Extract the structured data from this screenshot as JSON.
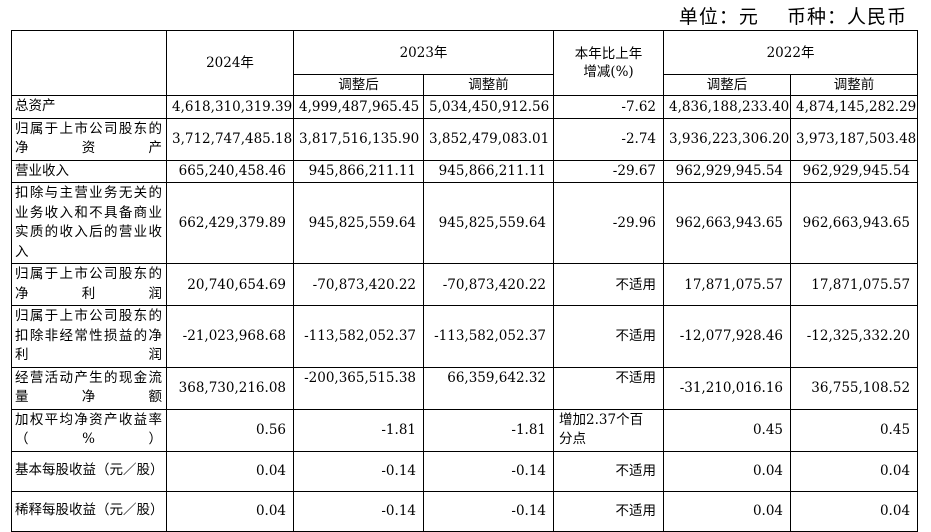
{
  "unit_line": "单位：元    币种：人民币",
  "header": {
    "y2024": "2024年",
    "y2023": "2023年",
    "change": "本年比上年\n增减(%)",
    "y2022": "2022年",
    "adjusted_after": "调整后",
    "adjusted_before": "调整前"
  },
  "rows": [
    {
      "label": "总资产",
      "v2024": "4,618,310,319.39",
      "v2023a": "4,999,487,965.45",
      "v2023b": "5,034,450,912.56",
      "chg": "-7.62",
      "v2022a": "4,836,188,233.40",
      "v2022b": "4,874,145,282.29"
    },
    {
      "label": "归属于上市公司股东的净资产",
      "v2024": "3,712,747,485.18",
      "v2023a": "3,817,516,135.90",
      "v2023b": "3,852,479,083.01",
      "chg": "-2.74",
      "v2022a": "3,936,223,306.20",
      "v2022b": "3,973,187,503.48"
    },
    {
      "label": "营业收入",
      "v2024": "665,240,458.46",
      "v2023a": "945,866,211.11",
      "v2023b": "945,866,211.11",
      "chg": "-29.67",
      "v2022a": "962,929,945.54",
      "v2022b": "962,929,945.54"
    },
    {
      "label": "扣除与主营业务无关的业务收入和不具备商业实质的收入后的营业收入",
      "v2024": "662,429,379.89",
      "v2023a": "945,825,559.64",
      "v2023b": "945,825,559.64",
      "chg": "-29.96",
      "v2022a": "962,663,943.65",
      "v2022b": "962,663,943.65"
    },
    {
      "label": "归属于上市公司股东的净利润",
      "v2024": "20,740,654.69",
      "v2023a": "-70,873,420.22",
      "v2023b": "-70,873,420.22",
      "chg": "不适用",
      "v2022a": "17,871,075.57",
      "v2022b": "17,871,075.57"
    },
    {
      "label": "归属于上市公司股东的扣除非经常性损益的净利润",
      "v2024": "-21,023,968.68",
      "v2023a": "-113,582,052.37",
      "v2023b": "-113,582,052.37",
      "chg": "不适用",
      "v2022a": "-12,077,928.46",
      "v2022b": "-12,325,332.20"
    },
    {
      "label": "经营活动产生的现金流量净额",
      "v2024": "368,730,216.08",
      "v2023a": "-200,365,515.38",
      "v2023b": "66,359,642.32",
      "chg": "不适用",
      "v2022a": "-31,210,016.16",
      "v2022b": "36,755,108.52"
    },
    {
      "label": "加权平均净资产收益率（%）",
      "v2024": "0.56",
      "v2023a": "-1.81",
      "v2023b": "-1.81",
      "chg_line1": "增加2.37个百",
      "chg_line2": "分点",
      "v2022a": "0.45",
      "v2022b": "0.45"
    },
    {
      "label": "基本每股收益（元／股）",
      "v2024": "0.04",
      "v2023a": "-0.14",
      "v2023b": "-0.14",
      "chg": "不适用",
      "v2022a": "0.04",
      "v2022b": "0.04"
    },
    {
      "label": "稀释每股收益（元／股）",
      "v2024": "0.04",
      "v2023a": "-0.14",
      "v2023b": "-0.14",
      "chg": "不适用",
      "v2022a": "0.04",
      "v2022b": "0.04"
    }
  ]
}
